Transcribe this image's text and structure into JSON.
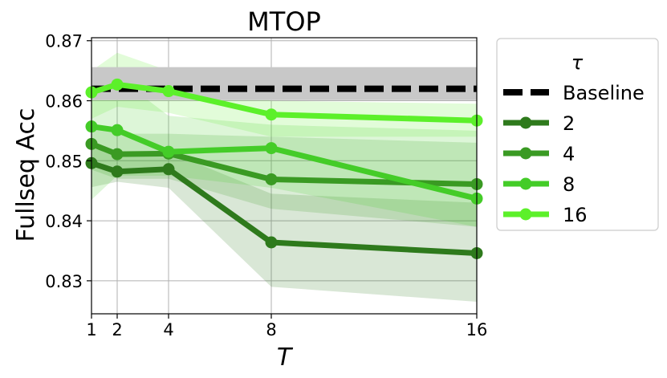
{
  "chart_data": {
    "type": "line",
    "title": "MTOP",
    "xlabel": "T",
    "ylabel": "Fullseq Acc",
    "x": [
      1,
      2,
      4,
      8,
      16
    ],
    "xlim": [
      1,
      16
    ],
    "ylim": [
      0.8245,
      0.8705
    ],
    "xticks": [
      1,
      2,
      4,
      8,
      16
    ],
    "xtick_labels": [
      "1",
      "2",
      "4",
      "8",
      "16"
    ],
    "yticks": [
      0.83,
      0.84,
      0.85,
      0.86,
      0.87
    ],
    "ytick_labels": [
      "0.83",
      "0.84",
      "0.85",
      "0.86",
      "0.87"
    ],
    "grid": true,
    "legend_title": "τ",
    "legend_position": "outside-right",
    "baseline": {
      "name": "Baseline",
      "value": 0.862,
      "band": [
        0.8601,
        0.8656
      ],
      "color": "#000000",
      "band_color": "#c8c8c8"
    },
    "series": [
      {
        "name": "2",
        "color": "#2e7a1c",
        "values": [
          0.8496,
          0.8482,
          0.8486,
          0.8364,
          0.8346
        ],
        "lower": [
          0.8456,
          0.8465,
          0.8455,
          0.829,
          0.8265
        ],
        "upper": [
          0.852,
          0.8515,
          0.8515,
          0.8445,
          0.843
        ]
      },
      {
        "name": "4",
        "color": "#3a9a23",
        "values": [
          0.8528,
          0.8511,
          0.8512,
          0.8469,
          0.8461
        ],
        "lower": [
          0.8485,
          0.847,
          0.847,
          0.842,
          0.839
        ],
        "upper": [
          0.856,
          0.8545,
          0.8545,
          0.854,
          0.853
        ]
      },
      {
        "name": "8",
        "color": "#44cc28",
        "values": [
          0.8557,
          0.8551,
          0.8515,
          0.8521,
          0.8437
        ],
        "lower": [
          0.8435,
          0.8475,
          0.8475,
          0.8455,
          0.839
        ],
        "upper": [
          0.8655,
          0.864,
          0.8575,
          0.856,
          0.855
        ]
      },
      {
        "name": "16",
        "color": "#5cf02a",
        "values": [
          0.8614,
          0.8627,
          0.8616,
          0.8577,
          0.8567
        ],
        "lower": [
          0.857,
          0.859,
          0.858,
          0.854,
          0.854
        ],
        "upper": [
          0.865,
          0.868,
          0.865,
          0.86,
          0.8595
        ]
      }
    ]
  }
}
